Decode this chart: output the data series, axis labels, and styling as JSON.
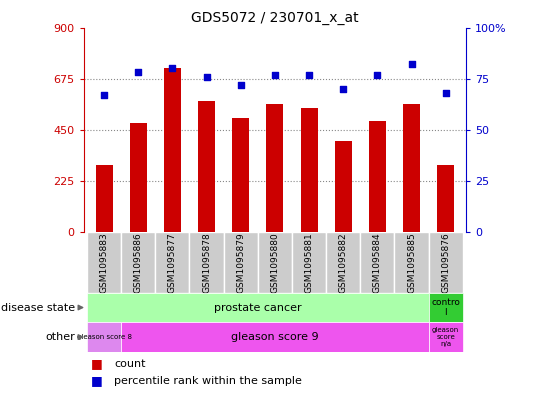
{
  "title": "GDS5072 / 230701_x_at",
  "samples": [
    "GSM1095883",
    "GSM1095886",
    "GSM1095877",
    "GSM1095878",
    "GSM1095879",
    "GSM1095880",
    "GSM1095881",
    "GSM1095882",
    "GSM1095884",
    "GSM1095885",
    "GSM1095876"
  ],
  "counts": [
    295,
    480,
    720,
    575,
    500,
    565,
    545,
    400,
    490,
    565,
    295
  ],
  "percentiles": [
    67,
    78,
    80,
    76,
    72,
    77,
    77,
    70,
    77,
    82,
    68
  ],
  "ylim_left": [
    0,
    900
  ],
  "ylim_right": [
    0,
    100
  ],
  "yticks_left": [
    0,
    225,
    450,
    675,
    900
  ],
  "yticks_right": [
    0,
    25,
    50,
    75,
    100
  ],
  "bar_color": "#cc0000",
  "dot_color": "#0000cc",
  "grid_dotted_color": "#888888",
  "prostate_cancer_color": "#aaffaa",
  "control_color": "#33cc33",
  "gleason8_color": "#dd88ee",
  "gleason9_color": "#ee55ee",
  "gleason_na_color": "#ee55ee",
  "tick_bg_color": "#cccccc",
  "row_label_disease": "disease state",
  "row_label_other": "other",
  "prostate_cancer_label": "prostate cancer",
  "control_label": "contro\nl",
  "gleason8_label": "gleason score 8",
  "gleason9_label": "gleason score 9",
  "gleason_na_label": "gleason\nscore\nn/a",
  "legend_count": "count",
  "legend_percentile": "percentile rank within the sample"
}
